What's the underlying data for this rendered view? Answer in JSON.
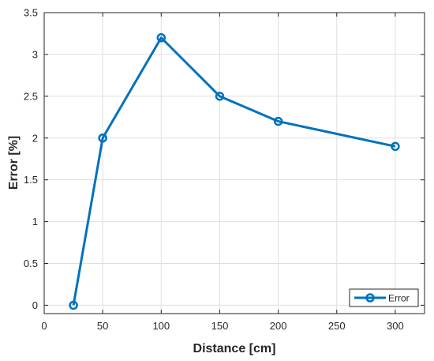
{
  "chart_data": {
    "type": "line",
    "xlabel": "Distance [cm]",
    "ylabel": "Error [%]",
    "xlim": [
      0,
      325
    ],
    "ylim": [
      -0.1,
      3.5
    ],
    "xticks": [
      "0",
      "50",
      "100",
      "150",
      "200",
      "250",
      "300"
    ],
    "yticks": [
      "0",
      "0.5",
      "1",
      "1.5",
      "2",
      "2.5",
      "3",
      "3.5"
    ],
    "grid": true,
    "legend_position": "bottom-right",
    "series": [
      {
        "name": "Error",
        "color": "#0072BD",
        "marker": "circle",
        "x": [
          25,
          50,
          100,
          150,
          200,
          300
        ],
        "y": [
          0,
          2,
          3.2,
          2.5,
          2.2,
          1.9
        ]
      }
    ]
  }
}
